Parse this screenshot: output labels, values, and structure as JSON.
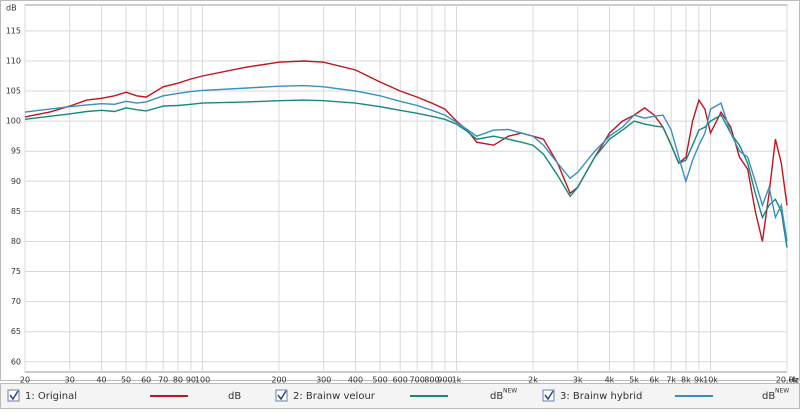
{
  "chart_data": {
    "type": "line",
    "y_label": "dB",
    "x_label": "Hz",
    "log_x": true,
    "grid": true,
    "x": [
      20,
      25,
      30,
      35,
      40,
      45,
      50,
      55,
      60,
      70,
      80,
      90,
      100,
      150,
      200,
      250,
      300,
      400,
      500,
      600,
      700,
      800,
      900,
      1000,
      1100,
      1200,
      1400,
      1600,
      1800,
      2000,
      2200,
      2500,
      2800,
      3000,
      3500,
      4000,
      4500,
      5000,
      5500,
      6000,
      6500,
      7000,
      7500,
      8000,
      8500,
      9000,
      9500,
      10000,
      11000,
      12000,
      13000,
      14000,
      15000,
      16000,
      17000,
      18000,
      19000,
      20000
    ],
    "series": [
      {
        "name": "1: Original",
        "unit": "dB",
        "color": "#c0141e",
        "values": [
          100.7,
          101.5,
          102.5,
          103.5,
          103.8,
          104.2,
          104.8,
          104.2,
          104,
          105.7,
          106.3,
          107,
          107.5,
          109,
          109.8,
          110,
          109.8,
          108.5,
          106.5,
          105,
          104,
          103,
          102,
          100,
          98.5,
          96.5,
          96,
          97.5,
          98,
          97.5,
          97,
          93,
          88,
          89,
          94,
          98,
          100,
          101,
          102.2,
          101,
          99,
          96,
          93,
          94,
          100,
          103.5,
          102,
          98,
          101.5,
          99,
          94,
          92,
          85,
          80,
          88,
          97,
          93,
          86
        ]
      },
      {
        "name": "2: Brainw velour",
        "unit": "dB",
        "unit_note": "NEW",
        "color": "#16897d",
        "values": [
          100.3,
          100.8,
          101.2,
          101.6,
          101.8,
          101.6,
          102.2,
          101.9,
          101.7,
          102.5,
          102.6,
          102.8,
          103,
          103.2,
          103.4,
          103.5,
          103.4,
          103,
          102.4,
          101.8,
          101.3,
          100.8,
          100.3,
          99.5,
          98.3,
          97,
          97.5,
          97,
          96.5,
          96,
          94.5,
          91,
          87.5,
          89,
          94,
          97,
          98.5,
          100,
          99.5,
          99.2,
          99,
          96,
          93,
          93.5,
          96,
          98.5,
          99,
          100,
          101,
          98,
          96,
          93,
          88,
          84,
          86,
          87,
          85,
          79
        ]
      },
      {
        "name": "3: Brainw hybrid",
        "unit": "dB",
        "unit_note": "NEW",
        "color": "#3a8fbf",
        "values": [
          101.5,
          102,
          102.4,
          102.7,
          102.9,
          102.8,
          103.3,
          103,
          103.2,
          104.2,
          104.6,
          104.9,
          105.1,
          105.5,
          105.8,
          105.9,
          105.7,
          105,
          104.2,
          103.3,
          102.6,
          101.8,
          101,
          99.8,
          98.6,
          97.5,
          98.5,
          98.6,
          98,
          97.5,
          96,
          93,
          90.5,
          91.5,
          95,
          97.5,
          99,
          101,
          100.5,
          100.8,
          101,
          98.5,
          94,
          90,
          93.5,
          96,
          98,
          102,
          103,
          98,
          95,
          94,
          90,
          86,
          89,
          84,
          86,
          80
        ]
      }
    ],
    "xlim": [
      20,
      20000
    ],
    "xticks": [
      20,
      30,
      40,
      50,
      60,
      70,
      80,
      90,
      100,
      200,
      300,
      400,
      500,
      600,
      700,
      800,
      900,
      {
        "value": 1000,
        "label": "1k"
      },
      {
        "value": 2000,
        "label": "2k"
      },
      {
        "value": 3000,
        "label": "3k"
      },
      {
        "value": 4000,
        "label": "4k"
      },
      {
        "value": 5000,
        "label": "5k"
      },
      {
        "value": 6000,
        "label": "6k"
      },
      {
        "value": 7000,
        "label": "7k"
      },
      {
        "value": 8000,
        "label": "8k"
      },
      {
        "value": 9000,
        "label": "9k"
      },
      {
        "value": 10000,
        "label": "10k"
      },
      {
        "value": 20000,
        "label": "20,0k"
      }
    ],
    "ylim": [
      58.3,
      119.3
    ],
    "yticks": [
      60,
      65,
      70,
      75,
      80,
      85,
      90,
      95,
      100,
      105,
      110,
      115
    ]
  }
}
